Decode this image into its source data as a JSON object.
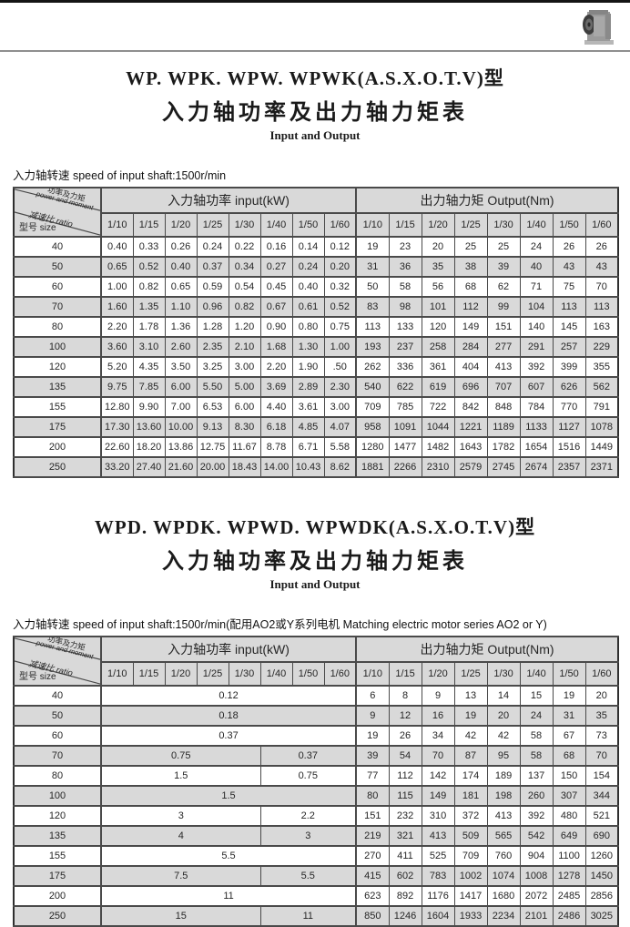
{
  "page": {
    "top_bar_color": "#141414",
    "divider_color": "#8f8f8f",
    "row_alt_color": "#d9d9d9",
    "header_bg_color": "#d9d9d9",
    "border_color": "#4a4a4a",
    "photo_icon": "worm-gearbox-photo"
  },
  "sections": [
    {
      "title": "WP. WPK. WPW. WPWK(A.S.X.O.T.V)型",
      "subtitle_cn": "入力轴功率及出力轴力矩表",
      "subtitle_en": "Input and Output",
      "note": "入力轴转速 speed of input shaft:1500r/min",
      "table": {
        "corner": {
          "power_cn": "功率及力矩",
          "power_en": "power and moment",
          "ratio_label": "减速比 ratio",
          "size_label": "型号 size"
        },
        "input_header": "入力轴功率  input(kW)",
        "output_header": "出力轴力矩  Output(Nm)",
        "ratios": [
          "1/10",
          "1/15",
          "1/20",
          "1/25",
          "1/30",
          "1/40",
          "1/50",
          "1/60"
        ],
        "rows": [
          {
            "size": "40",
            "input": [
              "0.40",
              "0.33",
              "0.26",
              "0.24",
              "0.22",
              "0.16",
              "0.14",
              "0.12"
            ],
            "output": [
              "19",
              "23",
              "20",
              "25",
              "25",
              "24",
              "26",
              "26"
            ]
          },
          {
            "size": "50",
            "input": [
              "0.65",
              "0.52",
              "0.40",
              "0.37",
              "0.34",
              "0.27",
              "0.24",
              "0.20"
            ],
            "output": [
              "31",
              "36",
              "35",
              "38",
              "39",
              "40",
              "43",
              "43"
            ]
          },
          {
            "size": "60",
            "input": [
              "1.00",
              "0.82",
              "0.65",
              "0.59",
              "0.54",
              "0.45",
              "0.40",
              "0.32"
            ],
            "output": [
              "50",
              "58",
              "56",
              "68",
              "62",
              "71",
              "75",
              "70"
            ]
          },
          {
            "size": "70",
            "input": [
              "1.60",
              "1.35",
              "1.10",
              "0.96",
              "0.82",
              "0.67",
              "0.61",
              "0.52"
            ],
            "output": [
              "83",
              "98",
              "101",
              "112",
              "99",
              "104",
              "113",
              "113"
            ]
          },
          {
            "size": "80",
            "input": [
              "2.20",
              "1.78",
              "1.36",
              "1.28",
              "1.20",
              "0.90",
              "0.80",
              "0.75"
            ],
            "output": [
              "113",
              "133",
              "120",
              "149",
              "151",
              "140",
              "145",
              "163"
            ]
          },
          {
            "size": "100",
            "input": [
              "3.60",
              "3.10",
              "2.60",
              "2.35",
              "2.10",
              "1.68",
              "1.30",
              "1.00"
            ],
            "output": [
              "193",
              "237",
              "258",
              "284",
              "277",
              "291",
              "257",
              "229"
            ]
          },
          {
            "size": "120",
            "input": [
              "5.20",
              "4.35",
              "3.50",
              "3.25",
              "3.00",
              "2.20",
              "1.90",
              ".50"
            ],
            "output": [
              "262",
              "336",
              "361",
              "404",
              "413",
              "392",
              "399",
              "355"
            ]
          },
          {
            "size": "135",
            "input": [
              "9.75",
              "7.85",
              "6.00",
              "5.50",
              "5.00",
              "3.69",
              "2.89",
              "2.30"
            ],
            "output": [
              "540",
              "622",
              "619",
              "696",
              "707",
              "607",
              "626",
              "562"
            ]
          },
          {
            "size": "155",
            "input": [
              "12.80",
              "9.90",
              "7.00",
              "6.53",
              "6.00",
              "4.40",
              "3.61",
              "3.00"
            ],
            "output": [
              "709",
              "785",
              "722",
              "842",
              "848",
              "784",
              "770",
              "791"
            ]
          },
          {
            "size": "175",
            "input": [
              "17.30",
              "13.60",
              "10.00",
              "9.13",
              "8.30",
              "6.18",
              "4.85",
              "4.07"
            ],
            "output": [
              "958",
              "1091",
              "1044",
              "1221",
              "1189",
              "1133",
              "1127",
              "1078"
            ]
          },
          {
            "size": "200",
            "input": [
              "22.60",
              "18.20",
              "13.86",
              "12.75",
              "11.67",
              "8.78",
              "6.71",
              "5.58"
            ],
            "output": [
              "1280",
              "1477",
              "1482",
              "1643",
              "1782",
              "1654",
              "1516",
              "1449"
            ]
          },
          {
            "size": "250",
            "input": [
              "33.20",
              "27.40",
              "21.60",
              "20.00",
              "18.43",
              "14.00",
              "10.43",
              "8.62"
            ],
            "output": [
              "1881",
              "2266",
              "2310",
              "2579",
              "2745",
              "2674",
              "2357",
              "2371"
            ]
          }
        ]
      }
    },
    {
      "title": "WPD. WPDK. WPWD. WPWDK(A.S.X.O.T.V)型",
      "subtitle_cn": "入力轴功率及出力轴力矩表",
      "subtitle_en": "Input and Output",
      "note": "入力轴转速 speed of input shaft:1500r/min(配用AO2或Y系列电机 Matching electric motor series AO2 or Y)",
      "table": {
        "corner": {
          "power_cn": "功率及力矩",
          "power_en": "power and moment",
          "ratio_label": "减速比 ratio",
          "size_label": "型号 size"
        },
        "input_header": "入力轴功率  input(kW)",
        "output_header": "出力轴力矩  Output(Nm)",
        "ratios": [
          "1/10",
          "1/15",
          "1/20",
          "1/25",
          "1/30",
          "1/40",
          "1/50",
          "1/60"
        ],
        "rows": [
          {
            "size": "40",
            "input": [
              {
                "v": "0.12",
                "span": 8
              }
            ],
            "output": [
              "6",
              "8",
              "9",
              "13",
              "14",
              "15",
              "19",
              "20"
            ]
          },
          {
            "size": "50",
            "input": [
              {
                "v": "0.18",
                "span": 8
              }
            ],
            "output": [
              "9",
              "12",
              "16",
              "19",
              "20",
              "24",
              "31",
              "35"
            ]
          },
          {
            "size": "60",
            "input": [
              {
                "v": "0.37",
                "span": 8
              }
            ],
            "output": [
              "19",
              "26",
              "34",
              "42",
              "42",
              "58",
              "67",
              "73"
            ]
          },
          {
            "size": "70",
            "input": [
              {
                "v": "0.75",
                "span": 5
              },
              {
                "v": "0.37",
                "span": 3
              }
            ],
            "output": [
              "39",
              "54",
              "70",
              "87",
              "95",
              "58",
              "68",
              "70"
            ]
          },
          {
            "size": "80",
            "input": [
              {
                "v": "1.5",
                "span": 5
              },
              {
                "v": "0.75",
                "span": 3
              }
            ],
            "output": [
              "77",
              "112",
              "142",
              "174",
              "189",
              "137",
              "150",
              "154"
            ]
          },
          {
            "size": "100",
            "input": [
              {
                "v": "1.5",
                "span": 8
              }
            ],
            "output": [
              "80",
              "115",
              "149",
              "181",
              "198",
              "260",
              "307",
              "344"
            ]
          },
          {
            "size": "120",
            "input": [
              {
                "v": "3",
                "span": 5
              },
              {
                "v": "2.2",
                "span": 3
              }
            ],
            "output": [
              "151",
              "232",
              "310",
              "372",
              "413",
              "392",
              "480",
              "521"
            ]
          },
          {
            "size": "135",
            "input": [
              {
                "v": "4",
                "span": 5
              },
              {
                "v": "3",
                "span": 3
              }
            ],
            "output": [
              "219",
              "321",
              "413",
              "509",
              "565",
              "542",
              "649",
              "690"
            ]
          },
          {
            "size": "155",
            "input": [
              {
                "v": "5.5",
                "span": 8
              }
            ],
            "output": [
              "270",
              "411",
              "525",
              "709",
              "760",
              "904",
              "1100",
              "1260"
            ]
          },
          {
            "size": "175",
            "input": [
              {
                "v": "7.5",
                "span": 5
              },
              {
                "v": "5.5",
                "span": 3
              }
            ],
            "output": [
              "415",
              "602",
              "783",
              "1002",
              "1074",
              "1008",
              "1278",
              "1450"
            ]
          },
          {
            "size": "200",
            "input": [
              {
                "v": "11",
                "span": 8
              }
            ],
            "output": [
              "623",
              "892",
              "1176",
              "1417",
              "1680",
              "2072",
              "2485",
              "2856"
            ]
          },
          {
            "size": "250",
            "input": [
              {
                "v": "15",
                "span": 5
              },
              {
                "v": "11",
                "span": 3
              }
            ],
            "output": [
              "850",
              "1246",
              "1604",
              "1933",
              "2234",
              "2101",
              "2486",
              "3025"
            ]
          }
        ]
      }
    }
  ]
}
